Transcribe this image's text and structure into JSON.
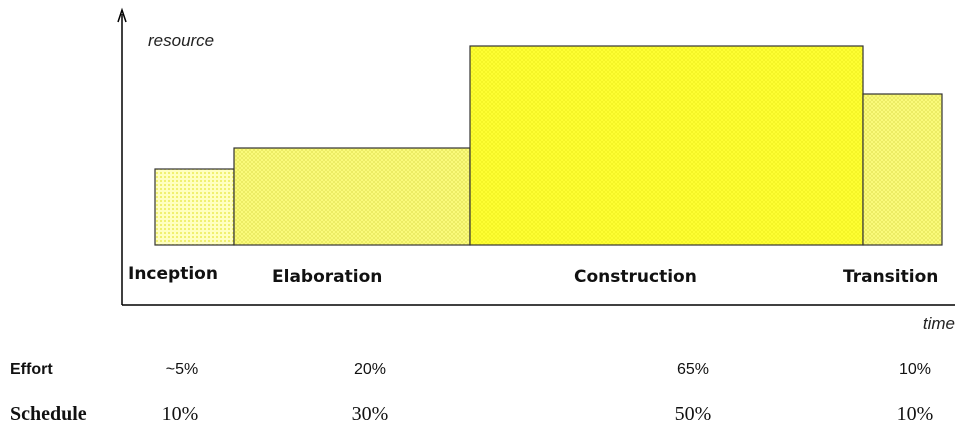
{
  "y_axis_label": "resource",
  "x_axis_label": "time",
  "rows": {
    "effort": "Effort",
    "schedule": "Schedule"
  },
  "phases": [
    {
      "name": "Inception",
      "effort": "~5%",
      "schedule": "10%"
    },
    {
      "name": "Elaboration",
      "effort": "20%",
      "schedule": "30%"
    },
    {
      "name": "Construction",
      "effort": "65%",
      "schedule": "50%"
    },
    {
      "name": "Transition",
      "effort": "10%",
      "schedule": "10%"
    }
  ]
}
